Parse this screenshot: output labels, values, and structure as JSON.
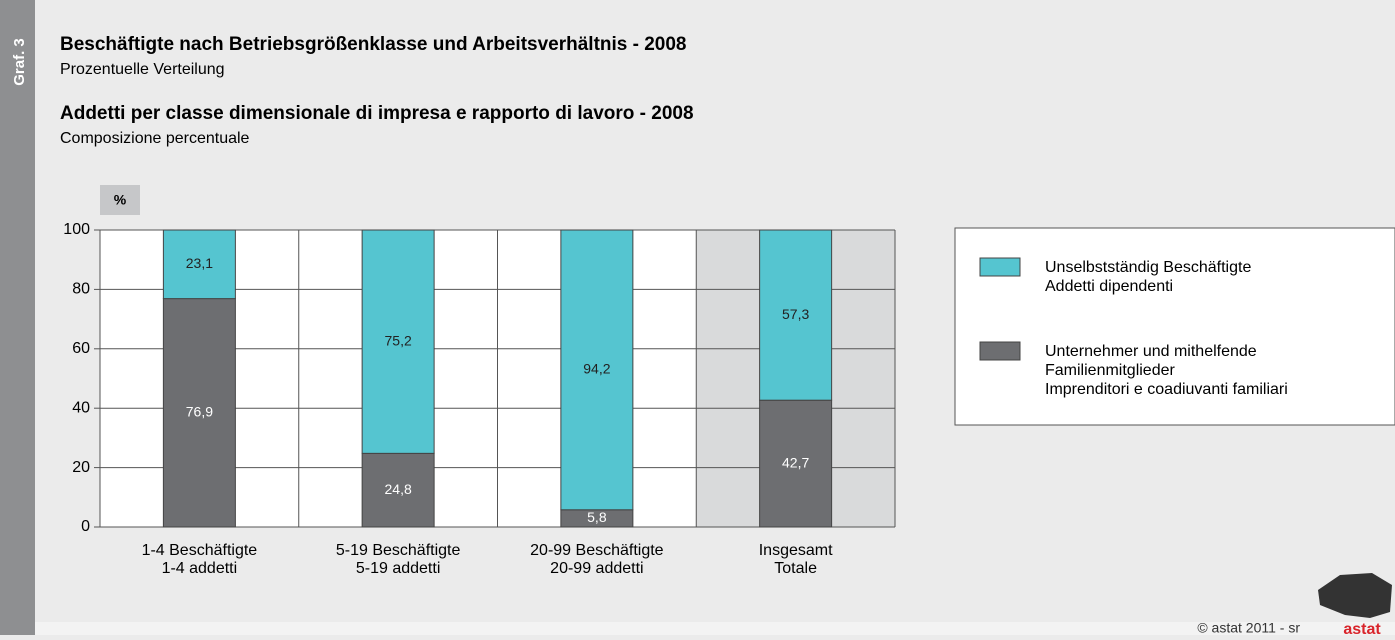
{
  "side_label": "Graf. 3",
  "chart_data": {
    "type": "stacked-bar",
    "title": "Beschäftigte nach Betriebsgrößenklasse und Arbeitsverhältnis - 2008",
    "subtitle": "Prozentuelle Verteilung",
    "title_2": "Addetti per classe dimensionale di impresa e rapporto di lavoro - 2008",
    "subtitle_2": "Composizione percentuale",
    "y_label": "%",
    "categories": [
      [
        "1-4 Beschäftigte",
        "1-4 addetti"
      ],
      [
        "5-19 Beschäftigte",
        "5-19 addetti"
      ],
      [
        "20-99 Beschäftigte",
        "20-99 addetti"
      ],
      [
        "Insgesamt",
        "Totale"
      ]
    ],
    "series": [
      {
        "name": [
          "Unternehmer und mithelfende",
          "Familienmitglieder",
          "Imprenditori e coadiuvanti familiari"
        ],
        "color": "#6d6e71",
        "values": [
          76.9,
          24.8,
          5.8,
          42.7
        ],
        "value_labels": [
          "76,9",
          "24,8",
          "5,8",
          "42,7"
        ]
      },
      {
        "name": [
          "Unselbstständig Beschäftigte",
          "Addetti dipendenti"
        ],
        "color": "#55c5d0",
        "values": [
          23.1,
          75.2,
          94.2,
          57.3
        ],
        "value_labels": [
          "23,1",
          "75,2",
          "94,2",
          "57,3"
        ]
      }
    ],
    "ylim": [
      0,
      100
    ],
    "yticks": [
      0,
      20,
      40,
      60,
      80,
      100
    ],
    "grid": true
  },
  "footer": "© astat 2011 - sr",
  "logo": "astat"
}
